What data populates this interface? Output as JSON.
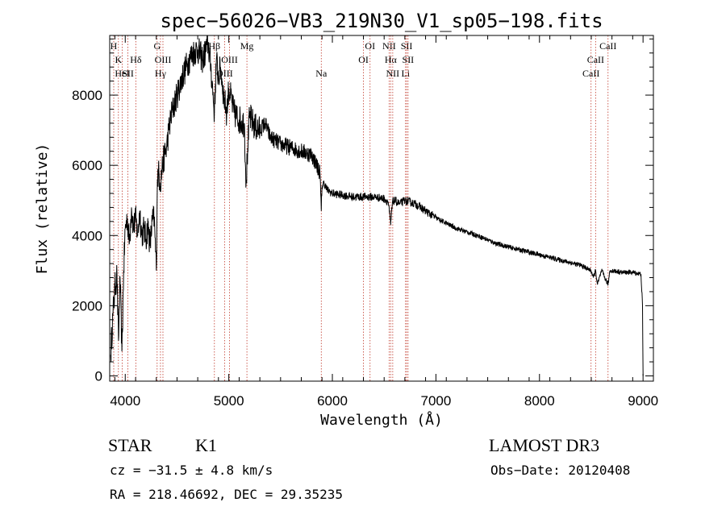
{
  "chart_data": {
    "type": "line",
    "title": "spec−56026−VB3_219N30_V1_sp05−198.fits",
    "xlabel": "Wavelength (Å)",
    "ylabel": "Flux (relative)",
    "xlim": [
      3850,
      9100
    ],
    "ylim": [
      -150,
      9700
    ],
    "x_ticks": [
      4000,
      5000,
      6000,
      7000,
      8000,
      9000
    ],
    "y_ticks": [
      0,
      2000,
      4000,
      6000,
      8000
    ],
    "series": [
      {
        "name": "flux",
        "x": [
          3860,
          3880,
          3900,
          3920,
          3935,
          3950,
          3968,
          3985,
          4000,
          4020,
          4040,
          4060,
          4080,
          4100,
          4120,
          4140,
          4160,
          4180,
          4200,
          4220,
          4240,
          4260,
          4280,
          4300,
          4310,
          4320,
          4340,
          4360,
          4380,
          4400,
          4420,
          4450,
          4500,
          4550,
          4600,
          4650,
          4700,
          4750,
          4800,
          4830,
          4861,
          4880,
          4900,
          4920,
          4950,
          4980,
          5000,
          5050,
          5100,
          5150,
          5167,
          5183,
          5200,
          5250,
          5300,
          5350,
          5400,
          5450,
          5500,
          5600,
          5700,
          5800,
          5850,
          5880,
          5893,
          5900,
          5920,
          5950,
          6000,
          6100,
          6200,
          6300,
          6400,
          6500,
          6540,
          6563,
          6580,
          6600,
          6650,
          6700,
          6750,
          6800,
          6900,
          7000,
          7200,
          7400,
          7600,
          7800,
          8000,
          8200,
          8400,
          8498,
          8520,
          8542,
          8560,
          8600,
          8662,
          8680,
          8700,
          8800,
          8900,
          8980,
          8995,
          9000
        ],
        "y": [
          600,
          1700,
          2500,
          2900,
          1000,
          2800,
          700,
          3000,
          4200,
          4500,
          3800,
          4800,
          4200,
          4500,
          4000,
          4700,
          4000,
          4200,
          3900,
          4300,
          3700,
          4400,
          4500,
          3000,
          5600,
          5800,
          5500,
          6000,
          6300,
          6500,
          7000,
          7500,
          8000,
          8500,
          8900,
          9200,
          9300,
          9000,
          9500,
          8700,
          7500,
          9000,
          8500,
          8800,
          8000,
          7500,
          8200,
          7500,
          7300,
          7200,
          5500,
          6500,
          7400,
          7100,
          7000,
          7200,
          6800,
          6700,
          6600,
          6500,
          6400,
          6300,
          6000,
          5800,
          4700,
          5400,
          5500,
          5300,
          5200,
          5150,
          5100,
          5100,
          5100,
          5050,
          4950,
          4300,
          4950,
          5000,
          4900,
          5000,
          4950,
          4900,
          4700,
          4500,
          4200,
          4000,
          3750,
          3600,
          3450,
          3300,
          3150,
          3000,
          2800,
          3000,
          2600,
          3000,
          2600,
          3000,
          3000,
          2950,
          2950,
          2900,
          2000,
          0
        ]
      }
    ],
    "line_markers": [
      {
        "x": 3889,
        "label": "H",
        "row": 0
      },
      {
        "x": 3934,
        "label": "K",
        "row": 1
      },
      {
        "x": 3970,
        "label": "HeI",
        "row": 2
      },
      {
        "x": 4026,
        "label": "SII",
        "row": 2
      },
      {
        "x": 4102,
        "label": "Hδ",
        "row": 1
      },
      {
        "x": 4308,
        "label": "G",
        "row": 0
      },
      {
        "x": 4340,
        "label": "Hγ",
        "row": 2
      },
      {
        "x": 4364,
        "label": "OIII",
        "row": 1
      },
      {
        "x": 4861,
        "label": "Hβ",
        "row": 0
      },
      {
        "x": 4959,
        "label": "OIII",
        "row": 2
      },
      {
        "x": 5007,
        "label": "OIII",
        "row": 1
      },
      {
        "x": 5175,
        "label": "Mg",
        "row": 0
      },
      {
        "x": 5893,
        "label": "Na",
        "row": 2
      },
      {
        "x": 6300,
        "label": "OI",
        "row": 1
      },
      {
        "x": 6364,
        "label": "OI",
        "row": 0
      },
      {
        "x": 6548,
        "label": "NII",
        "row": 0
      },
      {
        "x": 6563,
        "label": "Hα",
        "row": 1
      },
      {
        "x": 6583,
        "label": "NII",
        "row": 2
      },
      {
        "x": 6707,
        "label": "Li",
        "row": 2
      },
      {
        "x": 6717,
        "label": "SII",
        "row": 0
      },
      {
        "x": 6731,
        "label": "SII",
        "row": 1
      },
      {
        "x": 8498,
        "label": "CaII",
        "row": 2
      },
      {
        "x": 8542,
        "label": "CaII",
        "row": 1
      },
      {
        "x": 8662,
        "label": "CaII",
        "row": 0
      }
    ]
  },
  "info": {
    "object_class": "STAR",
    "subclass": "K1",
    "cz": "cz = −31.5 ± 4.8 km/s",
    "coords": "RA = 218.46692, DEC =  29.35235",
    "survey": "LAMOST DR3",
    "obs_date": "Obs−Date: 20120408"
  }
}
